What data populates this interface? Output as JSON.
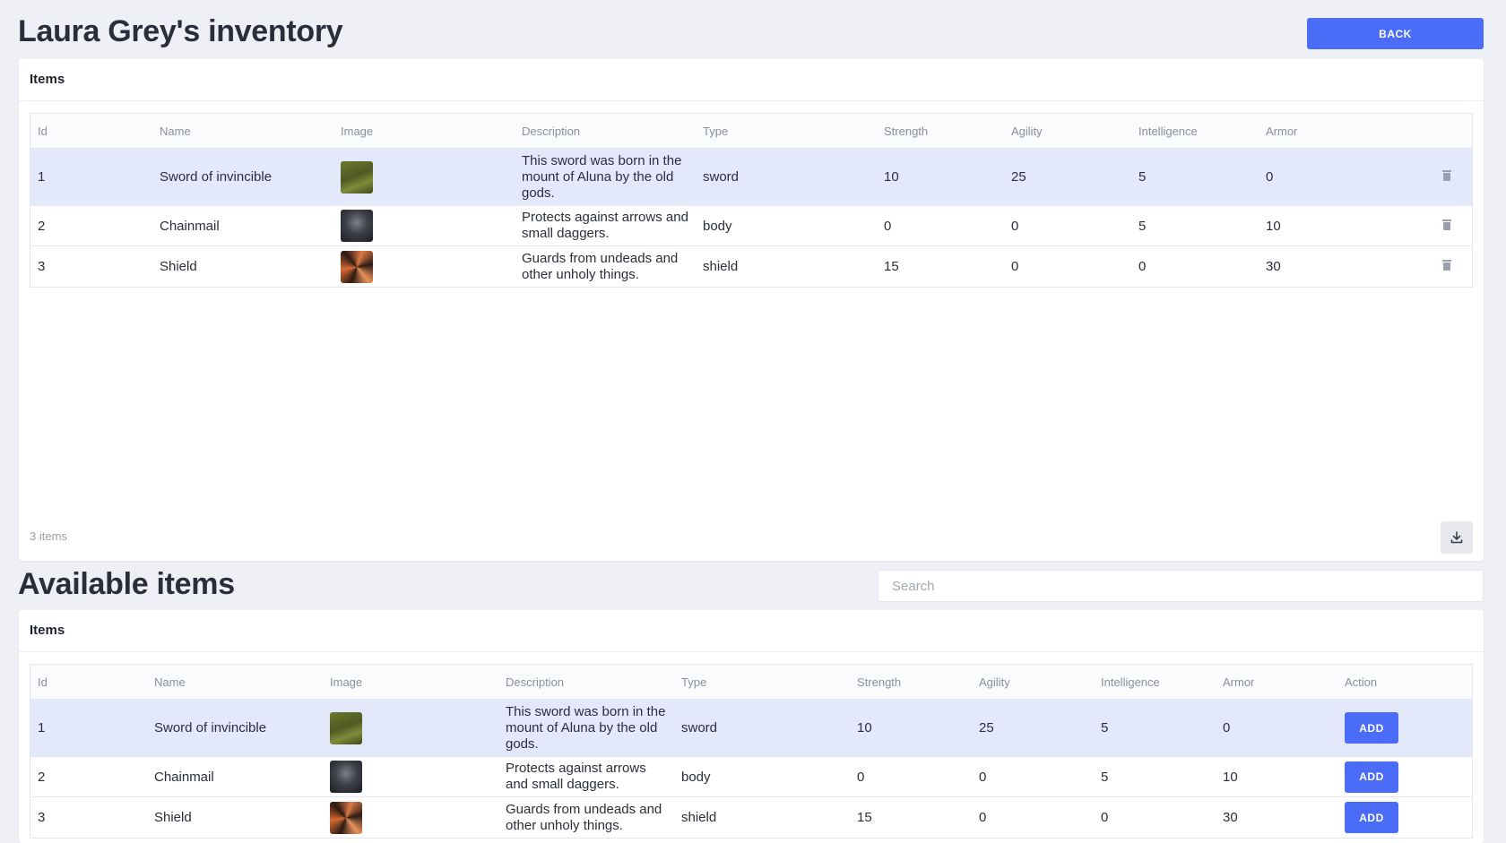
{
  "header": {
    "title": "Laura Grey's inventory",
    "back_label": "BACK"
  },
  "inventory": {
    "card_title": "Items",
    "columns": [
      "Id",
      "Name",
      "Image",
      "Description",
      "Type",
      "Strength",
      "Agility",
      "Intelligence",
      "Armor"
    ],
    "rows": [
      {
        "id": "1",
        "name": "Sword of invincible",
        "image": "sword",
        "description": "This sword was born in the mount of Aluna by the old gods.",
        "type": "sword",
        "strength": "10",
        "agility": "25",
        "intelligence": "5",
        "armor": "0"
      },
      {
        "id": "2",
        "name": "Chainmail",
        "image": "chainmail",
        "description": "Protects against arrows and small daggers.",
        "type": "body",
        "strength": "0",
        "agility": "0",
        "intelligence": "5",
        "armor": "10"
      },
      {
        "id": "3",
        "name": "Shield",
        "image": "shield",
        "description": "Guards from undeads and other unholy things.",
        "type": "shield",
        "strength": "15",
        "agility": "0",
        "intelligence": "0",
        "armor": "30"
      }
    ],
    "count_label": "3 items",
    "delete_icon": "trash-icon",
    "download_icon": "download-icon"
  },
  "available": {
    "title": "Available items",
    "search_placeholder": "Search",
    "card_title": "Items",
    "columns": [
      "Id",
      "Name",
      "Image",
      "Description",
      "Type",
      "Strength",
      "Agility",
      "Intelligence",
      "Armor",
      "Action"
    ],
    "add_label": "ADD",
    "rows": [
      {
        "id": "1",
        "name": "Sword of invincible",
        "image": "sword",
        "description": "This sword was born in the mount of Aluna by the old gods.",
        "type": "sword",
        "strength": "10",
        "agility": "25",
        "intelligence": "5",
        "armor": "0"
      },
      {
        "id": "2",
        "name": "Chainmail",
        "image": "chainmail",
        "description": "Protects against arrows and small daggers.",
        "type": "body",
        "strength": "0",
        "agility": "0",
        "intelligence": "5",
        "armor": "10"
      },
      {
        "id": "3",
        "name": "Shield",
        "image": "shield",
        "description": "Guards from undeads and other unholy things.",
        "type": "shield",
        "strength": "15",
        "agility": "0",
        "intelligence": "0",
        "armor": "30"
      }
    ]
  },
  "colors": {
    "accent": "#4a6cf7",
    "selected_row": "#e4e8fb",
    "page_bg": "#eef0f6"
  }
}
